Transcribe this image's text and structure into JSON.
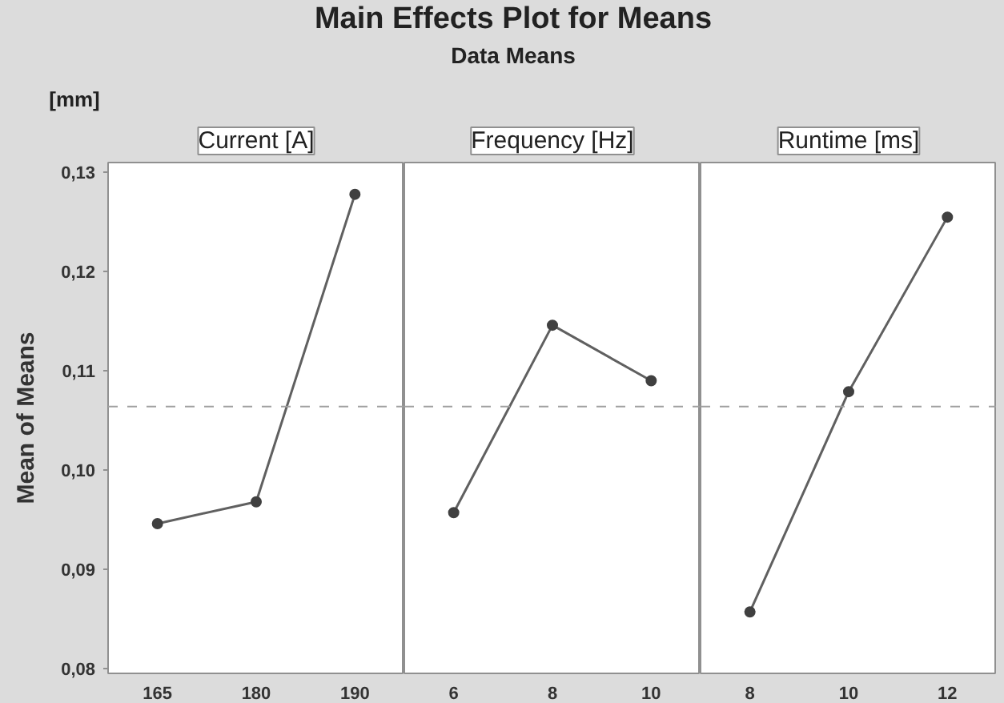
{
  "chart_data": [
    {
      "type": "line",
      "annotations": [
        "[mm]"
      ],
      "xlabel": "Current [A]",
      "ylabel": "Mean of Means",
      "categories": [
        "165",
        "180",
        "190"
      ],
      "series": [
        {
          "color": "#606060",
          "values": [
            0.0946,
            0.0968,
            0.1278
          ]
        }
      ],
      "ylim": [
        0.0795,
        0.131
      ],
      "yticks": [
        {
          "value": 0.08,
          "label": "0,08"
        },
        {
          "value": 0.09,
          "label": "0,09"
        },
        {
          "value": 0.1,
          "label": "0,10"
        },
        {
          "value": 0.11,
          "label": "0,11"
        },
        {
          "value": 0.12,
          "label": "0,12"
        },
        {
          "value": 0.13,
          "label": "0,13"
        }
      ],
      "ref_lines": [
        {
          "axis": "y",
          "value": 0.1064,
          "color": "#a0a0a0",
          "line_style": "dashed"
        }
      ],
      "marker": "circle",
      "grid": false
    },
    {
      "type": "line",
      "title": "Main Effects Plot for Means",
      "subtitle": "Data Means",
      "xlabel": "Frequency [Hz]",
      "categories": [
        "6",
        "8",
        "10"
      ],
      "series": [
        {
          "color": "#606060",
          "values": [
            0.0957,
            0.1146,
            0.109
          ]
        }
      ],
      "ylim": [
        0.0795,
        0.131
      ],
      "tick_labels": "x",
      "ref_lines": [
        {
          "axis": "y",
          "value": 0.1064,
          "color": "#a0a0a0",
          "line_style": "dashed"
        }
      ],
      "marker": "circle",
      "grid": false
    },
    {
      "type": "line",
      "xlabel": "Runtime [ms]",
      "categories": [
        "8",
        "10",
        "12"
      ],
      "series": [
        {
          "color": "#606060",
          "values": [
            0.0857,
            0.1079,
            0.1255
          ]
        }
      ],
      "ylim": [
        0.0795,
        0.131
      ],
      "tick_labels": "x",
      "ref_lines": [
        {
          "axis": "y",
          "value": 0.1064,
          "color": "#a0a0a0",
          "line_style": "dashed"
        }
      ],
      "marker": "circle",
      "grid": false
    }
  ]
}
